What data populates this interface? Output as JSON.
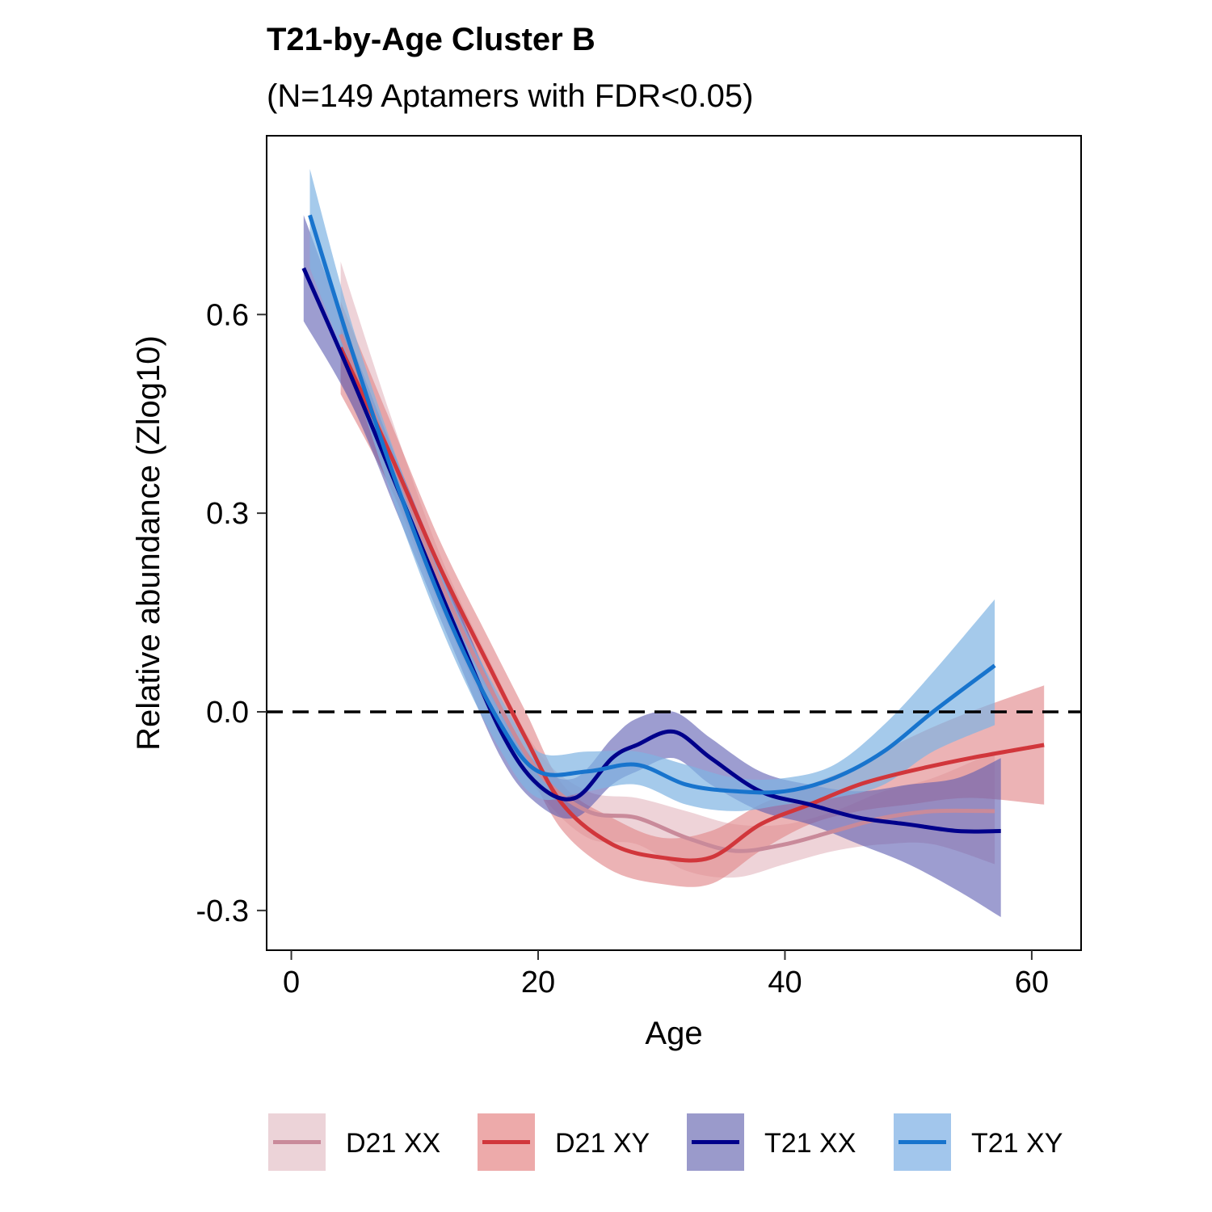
{
  "chart_data": {
    "type": "line",
    "title": "T21-by-Age Cluster B",
    "subtitle": "(N=149 Aptamers with FDR<0.05)",
    "xlabel": "Age",
    "ylabel": "Relative abundance (Zlog10)",
    "xlim": [
      -2,
      64
    ],
    "ylim": [
      -0.36,
      0.87
    ],
    "x_ticks": [
      0,
      20,
      40,
      60
    ],
    "x_tick_labels": [
      "0",
      "20",
      "40",
      "60"
    ],
    "y_ticks": [
      -0.3,
      0.0,
      0.3,
      0.6
    ],
    "y_tick_labels": [
      "-0.3",
      "0.0",
      "0.3",
      "0.6"
    ],
    "reference_line": {
      "y": 0,
      "style": "dashed",
      "color": "#000000"
    },
    "grid": false,
    "legend_position": "bottom",
    "series": [
      {
        "name": "D21 XX",
        "line_color": "#c98a9a",
        "band_color": "#e8c4cb",
        "band_opacity": 0.75,
        "x": [
          4,
          8,
          12,
          16,
          20,
          24,
          28,
          32,
          36,
          40,
          44,
          48,
          52,
          57
        ],
        "y": [
          0.57,
          0.39,
          0.2,
          0.04,
          -0.09,
          -0.15,
          -0.16,
          -0.19,
          -0.21,
          -0.2,
          -0.18,
          -0.16,
          -0.15,
          -0.15
        ],
        "lower": [
          0.5,
          0.34,
          0.16,
          0.0,
          -0.12,
          -0.19,
          -0.2,
          -0.24,
          -0.25,
          -0.23,
          -0.21,
          -0.2,
          -0.2,
          -0.23
        ],
        "upper": [
          0.68,
          0.45,
          0.24,
          0.08,
          -0.06,
          -0.12,
          -0.13,
          -0.15,
          -0.17,
          -0.17,
          -0.15,
          -0.12,
          -0.1,
          -0.06
        ]
      },
      {
        "name": "D21 XY",
        "line_color": "#d1363b",
        "band_color": "#e28b8e",
        "band_opacity": 0.65,
        "x": [
          4,
          8,
          12,
          16,
          19,
          22,
          26,
          30,
          34,
          38,
          42,
          46,
          50,
          55,
          61
        ],
        "y": [
          0.55,
          0.39,
          0.22,
          0.07,
          -0.04,
          -0.14,
          -0.2,
          -0.22,
          -0.22,
          -0.17,
          -0.14,
          -0.11,
          -0.09,
          -0.07,
          -0.05
        ],
        "lower": [
          0.48,
          0.34,
          0.18,
          0.03,
          -0.08,
          -0.18,
          -0.24,
          -0.26,
          -0.26,
          -0.21,
          -0.17,
          -0.15,
          -0.14,
          -0.13,
          -0.14
        ],
        "upper": [
          0.62,
          0.44,
          0.26,
          0.11,
          0.0,
          -0.11,
          -0.16,
          -0.19,
          -0.18,
          -0.14,
          -0.11,
          -0.08,
          -0.04,
          0.0,
          0.04
        ]
      },
      {
        "name": "T21 XX",
        "line_color": "#00008b",
        "band_color": "#5c5cb0",
        "band_opacity": 0.6,
        "x": [
          1,
          5,
          9,
          13,
          17,
          20,
          23,
          26,
          28,
          31,
          34,
          38,
          42,
          46,
          50,
          54,
          57.5
        ],
        "y": [
          0.67,
          0.5,
          0.32,
          0.14,
          -0.03,
          -0.11,
          -0.13,
          -0.07,
          -0.05,
          -0.03,
          -0.07,
          -0.12,
          -0.14,
          -0.16,
          -0.17,
          -0.18,
          -0.18
        ],
        "lower": [
          0.59,
          0.46,
          0.28,
          0.1,
          -0.07,
          -0.14,
          -0.16,
          -0.11,
          -0.09,
          -0.07,
          -0.11,
          -0.15,
          -0.17,
          -0.2,
          -0.23,
          -0.27,
          -0.31
        ],
        "upper": [
          0.75,
          0.55,
          0.36,
          0.18,
          0.01,
          -0.08,
          -0.1,
          -0.04,
          -0.01,
          0.0,
          -0.04,
          -0.09,
          -0.11,
          -0.12,
          -0.11,
          -0.1,
          -0.07
        ]
      },
      {
        "name": "T21 XY",
        "line_color": "#1874cd",
        "band_color": "#7fb3e3",
        "band_opacity": 0.7,
        "x": [
          1.5,
          5,
          9,
          13,
          17,
          20,
          24,
          28,
          32,
          36,
          40,
          44,
          48,
          52,
          57
        ],
        "y": [
          0.75,
          0.54,
          0.32,
          0.13,
          -0.02,
          -0.09,
          -0.09,
          -0.08,
          -0.11,
          -0.12,
          -0.12,
          -0.1,
          -0.06,
          0.0,
          0.07
        ],
        "lower": [
          0.67,
          0.5,
          0.28,
          0.09,
          -0.06,
          -0.13,
          -0.12,
          -0.11,
          -0.14,
          -0.15,
          -0.14,
          -0.13,
          -0.11,
          -0.06,
          -0.02
        ],
        "upper": [
          0.82,
          0.58,
          0.36,
          0.17,
          0.02,
          -0.06,
          -0.06,
          -0.06,
          -0.08,
          -0.1,
          -0.1,
          -0.08,
          -0.02,
          0.06,
          0.17
        ]
      }
    ]
  },
  "legend": [
    {
      "label": "D21 XX",
      "line_color": "#c98a9a",
      "box_color": "#ecd3d8"
    },
    {
      "label": "D21 XY",
      "line_color": "#d1363b",
      "box_color": "#edaaaa"
    },
    {
      "label": "T21 XX",
      "line_color": "#00008b",
      "box_color": "#9a9acb"
    },
    {
      "label": "T21 XY",
      "line_color": "#1874cd",
      "box_color": "#a2c6ec"
    }
  ]
}
